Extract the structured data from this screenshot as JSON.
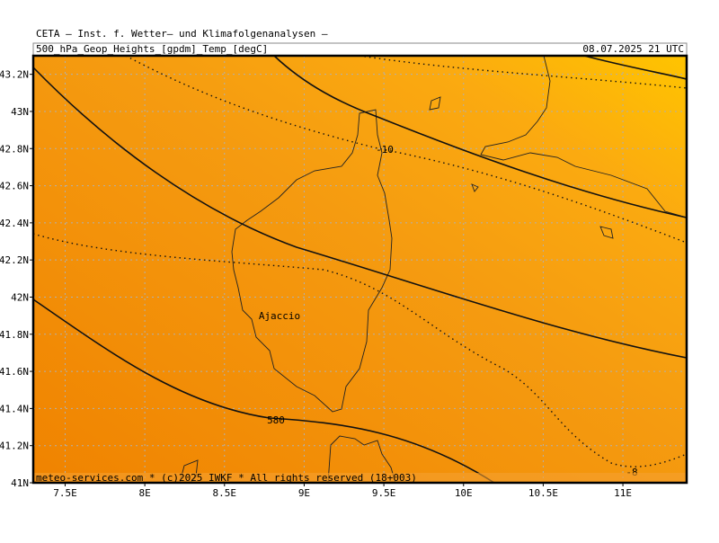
{
  "header": {
    "institute": "CETA – Inst. f. Wetter– und Klimafolgenanalysen –",
    "product": "500_hPa_Geop_Heights_[gpdm]_Temp_[degC]",
    "valid": "08.07.2025 21 UTC"
  },
  "map": {
    "xlim": [
      7.3,
      11.4
    ],
    "ylim": [
      41,
      43.3
    ],
    "xticks": [
      {
        "value": 7.5,
        "label": "7.5E"
      },
      {
        "value": 8,
        "label": "8E"
      },
      {
        "value": 8.5,
        "label": "8.5E"
      },
      {
        "value": 9,
        "label": "9E"
      },
      {
        "value": 9.5,
        "label": "9.5E"
      },
      {
        "value": 10,
        "label": "10E"
      },
      {
        "value": 10.5,
        "label": "10.5E"
      },
      {
        "value": 11,
        "label": "11E"
      }
    ],
    "yticks": [
      {
        "value": 41,
        "label": "41N"
      },
      {
        "value": 41.2,
        "label": "41.2N"
      },
      {
        "value": 41.4,
        "label": "41.4N"
      },
      {
        "value": 41.6,
        "label": "41.6N"
      },
      {
        "value": 41.8,
        "label": "41.8N"
      },
      {
        "value": 42,
        "label": "42N"
      },
      {
        "value": 42.2,
        "label": "42.2N"
      },
      {
        "value": 42.4,
        "label": "42.4N"
      },
      {
        "value": 42.6,
        "label": "42.6N"
      },
      {
        "value": 42.8,
        "label": "42.8N"
      },
      {
        "value": 43,
        "label": "43N"
      },
      {
        "value": 43.2,
        "label": "43.2N"
      }
    ]
  },
  "labels": {
    "temp_upper": "-10",
    "height": "580",
    "temp_lower": "-8",
    "city": "Ajaccio"
  },
  "footer": "meteo-services.com * (c)2025 IWKF * All rights reserved (18+003)"
}
